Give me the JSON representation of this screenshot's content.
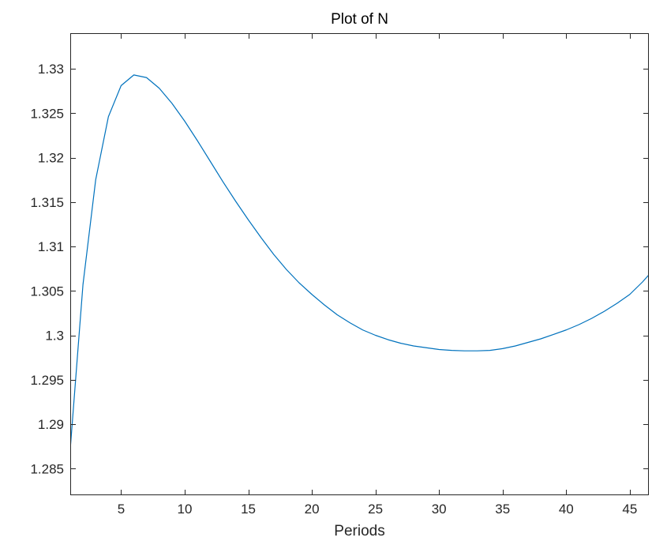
{
  "chart_data": {
    "type": "line",
    "title": "Plot of N",
    "xlabel": "Periods",
    "ylabel": "",
    "xlim": [
      1,
      46.5
    ],
    "ylim": [
      1.282,
      1.334
    ],
    "grid": false,
    "box": true,
    "xticks": [
      5,
      10,
      15,
      20,
      25,
      30,
      35,
      40,
      45
    ],
    "xtick_labels": [
      "5",
      "10",
      "15",
      "20",
      "25",
      "30",
      "35",
      "40",
      "45"
    ],
    "yticks": [
      1.285,
      1.29,
      1.295,
      1.3,
      1.305,
      1.31,
      1.315,
      1.32,
      1.325,
      1.33
    ],
    "ytick_labels": [
      "1.285",
      "1.29",
      "1.295",
      "1.3",
      "1.305",
      "1.31",
      "1.315",
      "1.32",
      "1.325",
      "1.33"
    ],
    "series": [
      {
        "color": "#0072bd",
        "x": [
          1,
          2,
          3,
          4,
          5,
          6,
          7,
          8,
          9,
          10,
          11,
          12,
          13,
          14,
          15,
          16,
          17,
          18,
          19,
          20,
          21,
          22,
          23,
          24,
          25,
          26,
          27,
          28,
          29,
          30,
          31,
          32,
          33,
          34,
          35,
          36,
          37,
          38,
          39,
          40,
          41,
          42,
          43,
          44,
          45,
          46,
          46.5
        ],
        "y": [
          1.2872,
          1.3057,
          1.3175,
          1.3246,
          1.3281,
          1.3293,
          1.329,
          1.3278,
          1.3261,
          1.3241,
          1.3219,
          1.3196,
          1.3173,
          1.3151,
          1.313,
          1.311,
          1.3091,
          1.3074,
          1.3059,
          1.3046,
          1.3034,
          1.3023,
          1.3014,
          1.3006,
          1.3,
          1.2995,
          1.2991,
          1.2988,
          1.2986,
          1.2984,
          1.2983,
          1.29825,
          1.29825,
          1.2983,
          1.2985,
          1.2988,
          1.2992,
          1.2996,
          1.3001,
          1.3006,
          1.3012,
          1.3019,
          1.3027,
          1.3036,
          1.3046,
          1.306,
          1.3068
        ]
      }
    ]
  }
}
